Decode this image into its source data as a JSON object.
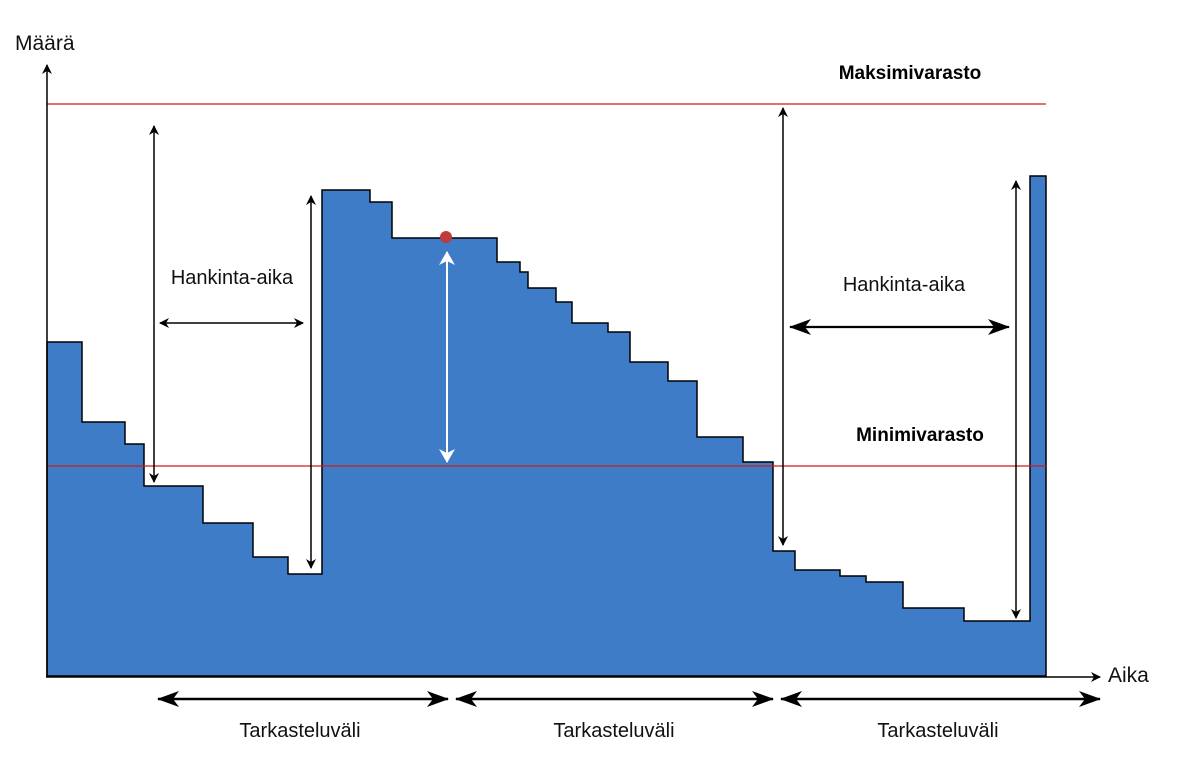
{
  "axes": {
    "y_label": "Määrä",
    "x_label": "Aika"
  },
  "levels": {
    "max_label": "Maksimivarasto",
    "min_label": "Minimivarasto",
    "line_color": "#d11a1a"
  },
  "inventory": {
    "fill_color": "#3f7cc7",
    "outline_color": "#000000"
  },
  "lead_time": {
    "labels": [
      "Hankinta-aika",
      "Hankinta-aika"
    ]
  },
  "review_period": {
    "labels": [
      "Tarkasteluväli",
      "Tarkasteluväli",
      "Tarkasteluväli"
    ]
  },
  "order_point": {
    "color": "#c0393b"
  }
}
